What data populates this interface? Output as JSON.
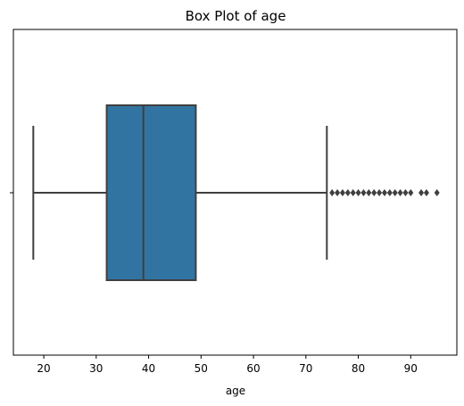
{
  "chart_data": {
    "type": "box",
    "title": "Box Plot of age",
    "xlabel": "age",
    "ylabel": "",
    "orientation": "horizontal",
    "xlim": [
      14.2,
      98.8
    ],
    "xticks": [
      20,
      30,
      40,
      50,
      60,
      70,
      80,
      90
    ],
    "grid": false,
    "box_color": "#3274a1",
    "line_color": "#3f3f3f",
    "series": [
      {
        "whisker_low": 18,
        "q1": 32,
        "median": 39,
        "q3": 49,
        "whisker_high": 74,
        "outliers": [
          75,
          76,
          77,
          78,
          79,
          80,
          81,
          82,
          83,
          84,
          85,
          86,
          87,
          88,
          89,
          90,
          92,
          93,
          95
        ]
      }
    ]
  }
}
